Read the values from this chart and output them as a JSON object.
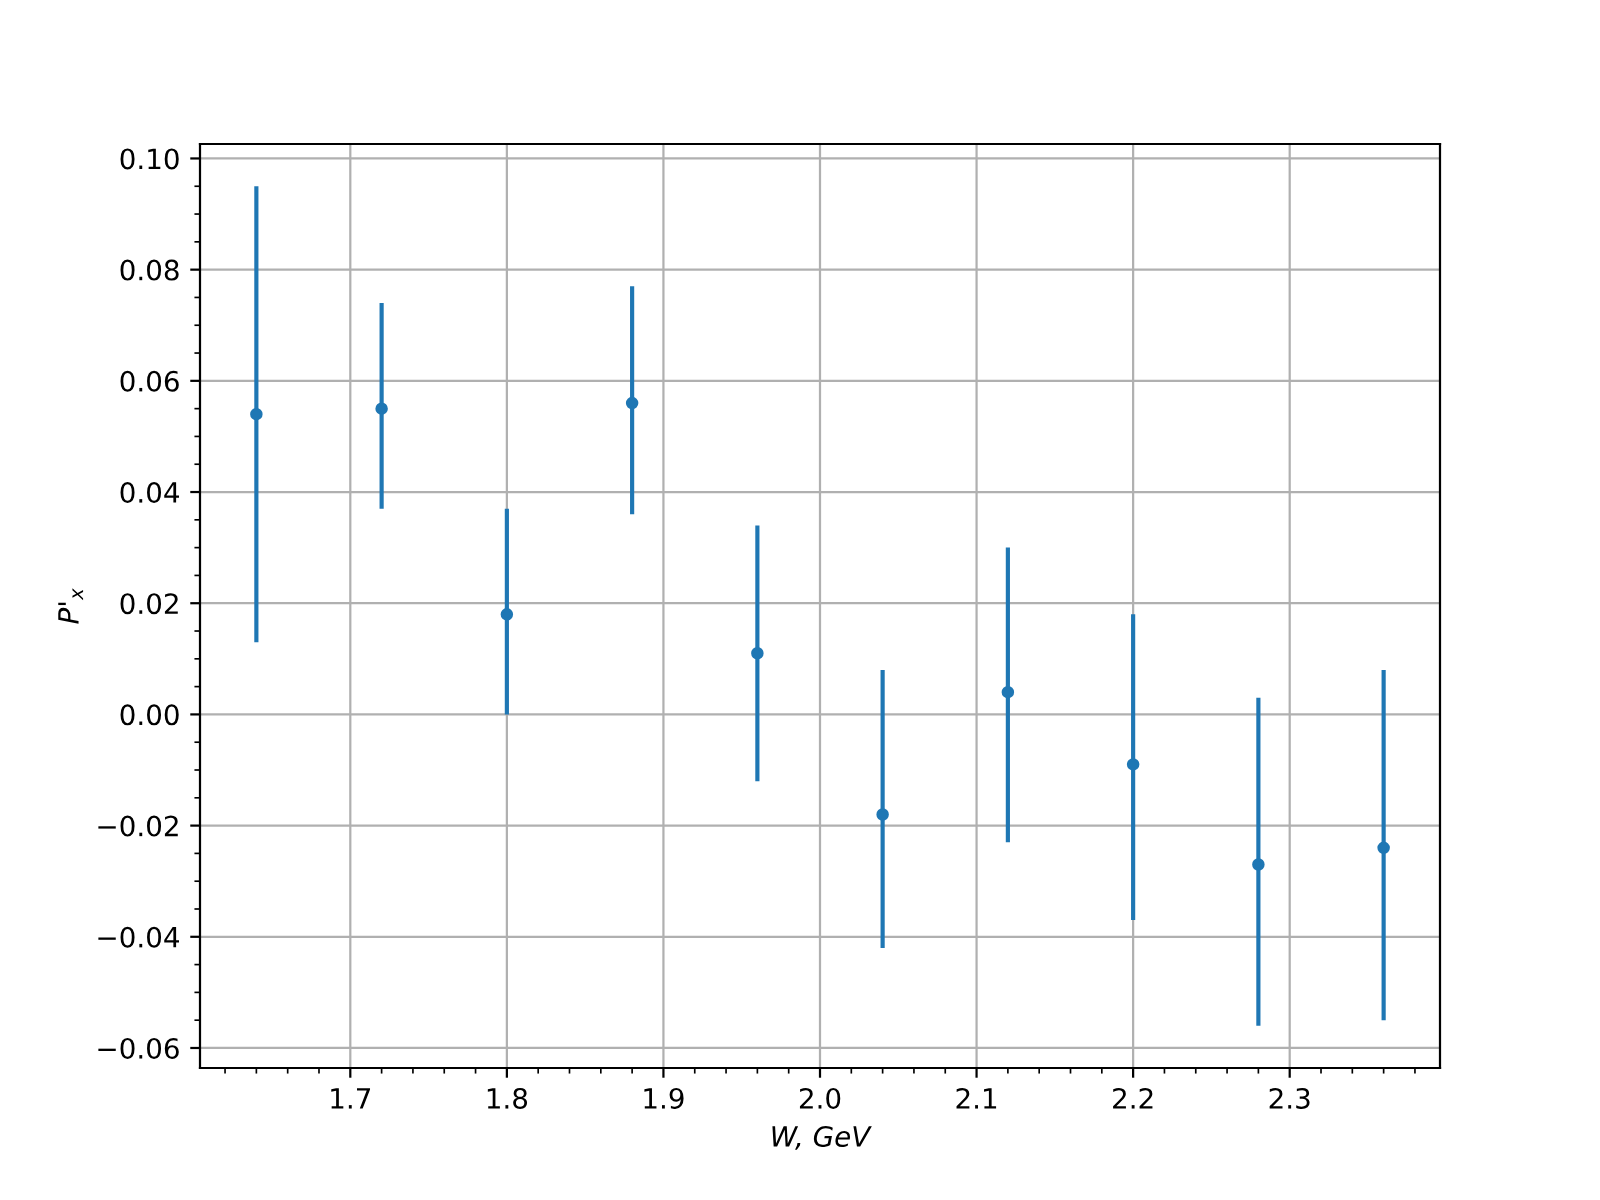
{
  "chart_data": {
    "type": "scatter",
    "xlabel": "W, GeV",
    "ylabel": "P'$_{x}$",
    "x": [
      1.64,
      1.72,
      1.8,
      1.88,
      1.96,
      2.04,
      2.12,
      2.2,
      2.28,
      2.36
    ],
    "series": [
      {
        "color": "#1f77b4",
        "values": [
          0.054,
          0.055,
          0.018,
          0.056,
          0.011,
          -0.018,
          0.004,
          -0.009,
          -0.027,
          -0.024
        ],
        "errors": [
          [
            0.013,
            0.095
          ],
          [
            0.037,
            0.074
          ],
          [
            0.0,
            0.037
          ],
          [
            0.036,
            0.077
          ],
          [
            -0.012,
            0.034
          ],
          [
            -0.042,
            0.008
          ],
          [
            -0.023,
            0.03
          ],
          [
            -0.037,
            0.018
          ],
          [
            -0.056,
            0.003
          ],
          [
            -0.055,
            0.008
          ]
        ]
      }
    ],
    "xlim": [
      1.604,
      2.396
    ],
    "ylim": [
      -0.0636,
      0.1026
    ],
    "xticks": [
      1.7,
      1.8,
      1.9,
      {
        "value": 2.0,
        "label": "2.0"
      },
      2.1,
      2.2,
      2.3
    ],
    "yticks": [
      {
        "value": -0.06,
        "label": "−0.06"
      },
      {
        "value": -0.04,
        "label": "−0.04"
      },
      {
        "value": -0.02,
        "label": "−0.02"
      },
      {
        "value": 0.0,
        "label": "0.00"
      },
      {
        "value": 0.02,
        "label": "0.02"
      },
      {
        "value": 0.04,
        "label": "0.04"
      },
      {
        "value": 0.06,
        "label": "0.06"
      },
      {
        "value": 0.08,
        "label": "0.08"
      },
      {
        "value": 0.1,
        "label": "0.10"
      }
    ],
    "grid": true,
    "marker": "circle"
  }
}
